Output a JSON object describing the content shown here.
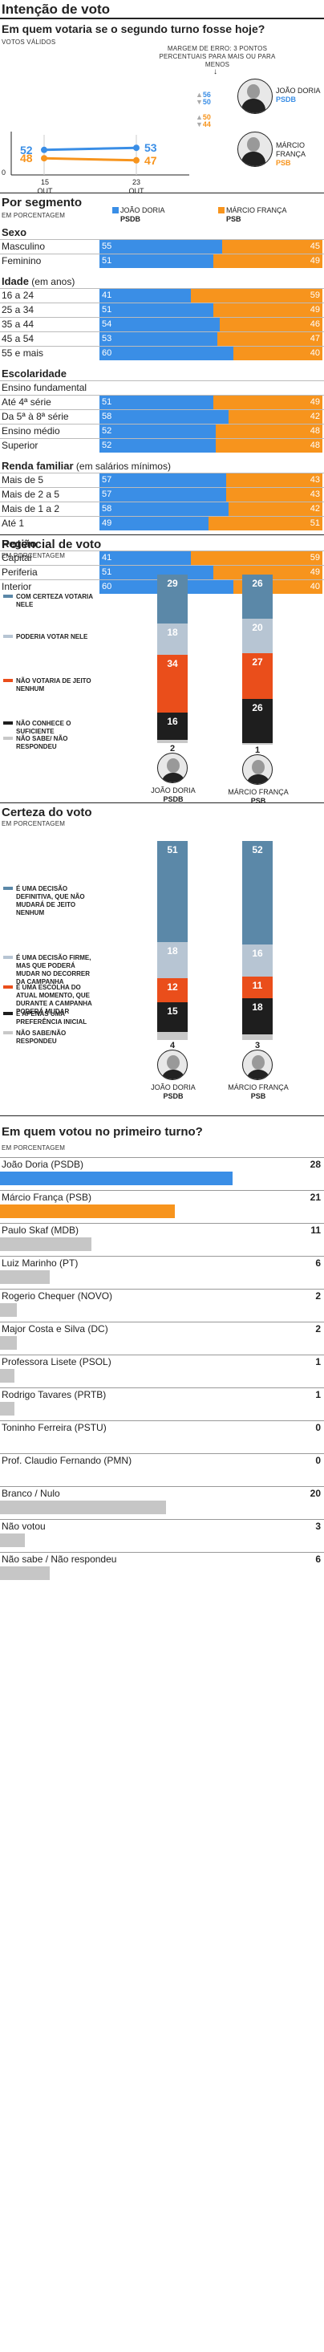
{
  "header": {
    "title": "Intenção de voto",
    "subtitle": "Em quem votaria se o segundo turno fosse hoje?",
    "note": "VOTOS VÁLIDOS",
    "margin_note": "MARGEM DE ERRO: 3 PONTOS PERCENTUAIS PARA MAIS OU PARA MENOS"
  },
  "candidates": {
    "doria": {
      "name": "JOÃO DORIA",
      "party": "PSDB",
      "color": "#3a8ee6"
    },
    "franca": {
      "name": "MÁRCIO FRANÇA",
      "party": "PSB",
      "color": "#f7941d"
    }
  },
  "chart_data": [
    {
      "type": "line",
      "x": [
        "15 OUT",
        "23 OUT"
      ],
      "series": [
        {
          "name": "JOÃO DORIA PSDB",
          "values": [
            52,
            53
          ]
        },
        {
          "name": "MÁRCIO FRANÇA PSB",
          "values": [
            48,
            47
          ]
        }
      ],
      "margin_range": {
        "doria": [
          56,
          50
        ],
        "franca": [
          50,
          44
        ]
      },
      "y_tick": "0"
    },
    {
      "type": "bar",
      "title": "Por segmento",
      "note": "EM PORCENTAGEM",
      "stacked": true,
      "groups": [
        {
          "name": "Sexo",
          "rows": [
            {
              "label": "Masculino",
              "doria": 55,
              "franca": 45
            },
            {
              "label": "Feminino",
              "doria": 51,
              "franca": 49
            }
          ]
        },
        {
          "name": "Idade",
          "suffix": "(em anos)",
          "rows": [
            {
              "label": "16 a 24",
              "doria": 41,
              "franca": 59
            },
            {
              "label": "25 a 34",
              "doria": 51,
              "franca": 49
            },
            {
              "label": "35 a 44",
              "doria": 54,
              "franca": 46
            },
            {
              "label": "45 a 54",
              "doria": 53,
              "franca": 47
            },
            {
              "label": "55 e mais",
              "doria": 60,
              "franca": 40
            }
          ]
        },
        {
          "name": "Escolaridade",
          "rows": [
            {
              "label": "Ensino fundamental",
              "header": true
            },
            {
              "label": "Até 4ª série",
              "doria": 51,
              "franca": 49
            },
            {
              "label": "Da 5ª à 8ª série",
              "doria": 58,
              "franca": 42
            },
            {
              "label": "Ensino médio",
              "doria": 52,
              "franca": 48
            },
            {
              "label": "Superior",
              "doria": 52,
              "franca": 48
            }
          ]
        },
        {
          "name": "Renda familiar",
          "suffix": "(em salários mínimos)",
          "rows": [
            {
              "label": "Mais de 5",
              "doria": 57,
              "franca": 43
            },
            {
              "label": "Mais de 2 a 5",
              "doria": 57,
              "franca": 43
            },
            {
              "label": "Mais de 1 a 2",
              "doria": 58,
              "franca": 42
            },
            {
              "label": "Até 1",
              "doria": 49,
              "franca": 51
            }
          ]
        },
        {
          "name": "Região",
          "rows": [
            {
              "label": "Capital",
              "doria": 41,
              "franca": 59
            },
            {
              "label": "Periferia",
              "doria": 51,
              "franca": 49
            },
            {
              "label": "Interior",
              "doria": 60,
              "franca": 40
            }
          ]
        }
      ]
    },
    {
      "type": "bar",
      "title": "Potencial de voto",
      "note": "EM PORCENTAGEM",
      "stacked": true,
      "legend": [
        {
          "label": "COM CERTEZA VOTARIA NELE",
          "color": "#5b88a8"
        },
        {
          "label": "PODERIA VOTAR NELE",
          "color": "#b7c5d3"
        },
        {
          "label": "NÃO VOTARIA DE JEITO NENHUM",
          "color": "#ea4e1b"
        },
        {
          "label": "NÃO CONHECE O SUFICIENTE",
          "color": "#1e1e1e"
        },
        {
          "label": "NÃO SABE/ NÃO RESPONDEU",
          "color": "#c8c8c8"
        }
      ],
      "bars": [
        {
          "candidate": "JOÃO DORIA",
          "party": "PSDB",
          "values": [
            29,
            18,
            34,
            16,
            2
          ]
        },
        {
          "candidate": "MÁRCIO FRANÇA",
          "party": "PSB",
          "values": [
            26,
            20,
            27,
            26,
            1
          ]
        }
      ]
    },
    {
      "type": "bar",
      "title": "Certeza do voto",
      "note": "EM PORCENTAGEM",
      "stacked": true,
      "legend": [
        {
          "label": "É UMA DECISÃO DEFINITIVA, QUE NÃO MUDARÁ DE JEITO NENHUM",
          "color": "#5b88a8"
        },
        {
          "label": "É UMA DECISÃO FIRME, MAS QUE PODERÁ MUDAR NO DECORRER DA CAMPANHA",
          "color": "#b7c5d3"
        },
        {
          "label": "É UMA ESCOLHA DO ATUAL MOMENTO, QUE DURANTE A CAMPANHA PODERÁ MUDAR",
          "color": "#ea4e1b"
        },
        {
          "label": "É APENAS UMA PREFERÊNCIA INICIAL",
          "color": "#1e1e1e"
        },
        {
          "label": "NÃO SABE/NÃO RESPONDEU",
          "color": "#c8c8c8"
        }
      ],
      "bars": [
        {
          "candidate": "JOÃO DORIA",
          "party": "PSDB",
          "values": [
            51,
            18,
            12,
            15,
            4
          ]
        },
        {
          "candidate": "MÁRCIO FRANÇA",
          "party": "PSB",
          "values": [
            52,
            16,
            11,
            18,
            3
          ]
        }
      ]
    },
    {
      "type": "bar",
      "title": "Em quem votou no primeiro turno?",
      "note": "EM PORCENTAGEM",
      "categories": [
        "João Doria (PSDB)",
        "Márcio França (PSB)",
        "Paulo Skaf (MDB)",
        "Luiz Marinho (PT)",
        "Rogerio Chequer (NOVO)",
        "Major Costa e Silva (DC)",
        "Professora Lisete (PSOL)",
        "Rodrigo Tavares (PRTB)",
        "Toninho Ferreira (PSTU)",
        "Prof. Claudio Fernando (PMN)",
        "Branco / Nulo",
        "Não votou",
        "Não sabe / Não respondeu"
      ],
      "values": [
        28,
        21,
        11,
        6,
        2,
        2,
        1,
        1,
        0,
        0,
        20,
        3,
        6
      ],
      "colors": [
        "#3a8ee6",
        "#f7941d",
        "#c6c6c6",
        "#c6c6c6",
        "#c6c6c6",
        "#c6c6c6",
        "#c6c6c6",
        "#c6c6c6",
        "#c6c6c6",
        "#c6c6c6",
        "#c6c6c6",
        "#c6c6c6",
        "#c6c6c6"
      ]
    }
  ]
}
